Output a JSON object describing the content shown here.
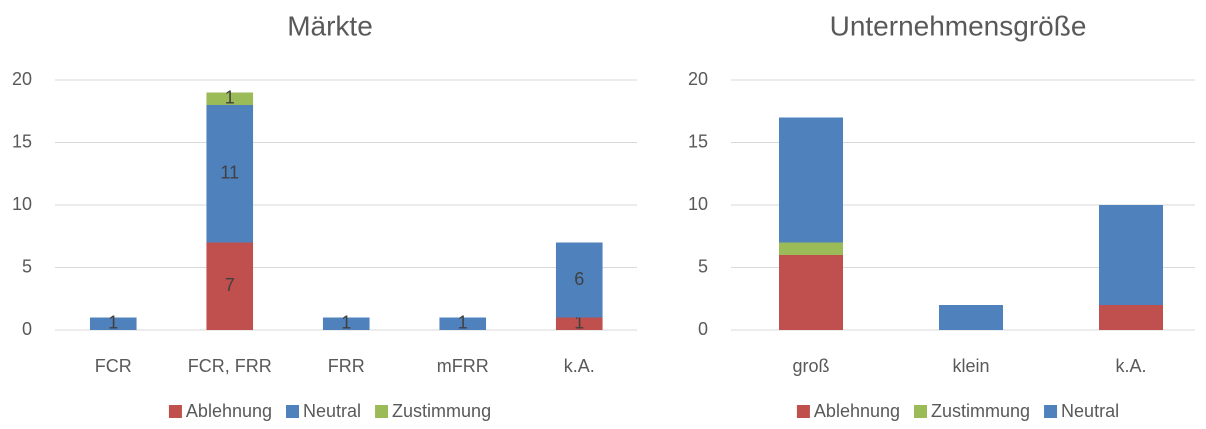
{
  "chart_data": [
    {
      "type": "bar",
      "stacked": true,
      "title": "Märkte",
      "categories": [
        "FCR",
        "FCR, FRR",
        "FRR",
        "mFRR",
        "k.A."
      ],
      "series": [
        {
          "name": "Ablehnung",
          "color": "#c0504d",
          "values": [
            null,
            7,
            null,
            null,
            1
          ]
        },
        {
          "name": "Neutral",
          "color": "#4f81bd",
          "values": [
            1,
            11,
            1,
            1,
            6
          ]
        },
        {
          "name": "Zustimmung",
          "color": "#9bbb59",
          "values": [
            null,
            1,
            null,
            null,
            null
          ]
        }
      ],
      "data_labels": true,
      "ylim": [
        0,
        20
      ],
      "yticks": [
        0,
        5,
        10,
        15,
        20
      ],
      "grid": true,
      "legend": "bottom"
    },
    {
      "type": "bar",
      "stacked": true,
      "title": "Unternehmensgröße",
      "categories": [
        "groß",
        "klein",
        "k.A."
      ],
      "series": [
        {
          "name": "Ablehnung",
          "color": "#c0504d",
          "values": [
            6,
            null,
            2
          ]
        },
        {
          "name": "Zustimmung",
          "color": "#9bbb59",
          "values": [
            1,
            null,
            null
          ]
        },
        {
          "name": "Neutral",
          "color": "#4f81bd",
          "values": [
            10,
            2,
            8
          ]
        }
      ],
      "data_labels": false,
      "ylim": [
        0,
        20
      ],
      "yticks": [
        0,
        5,
        10,
        15,
        20
      ],
      "grid": true,
      "legend": "bottom"
    }
  ]
}
